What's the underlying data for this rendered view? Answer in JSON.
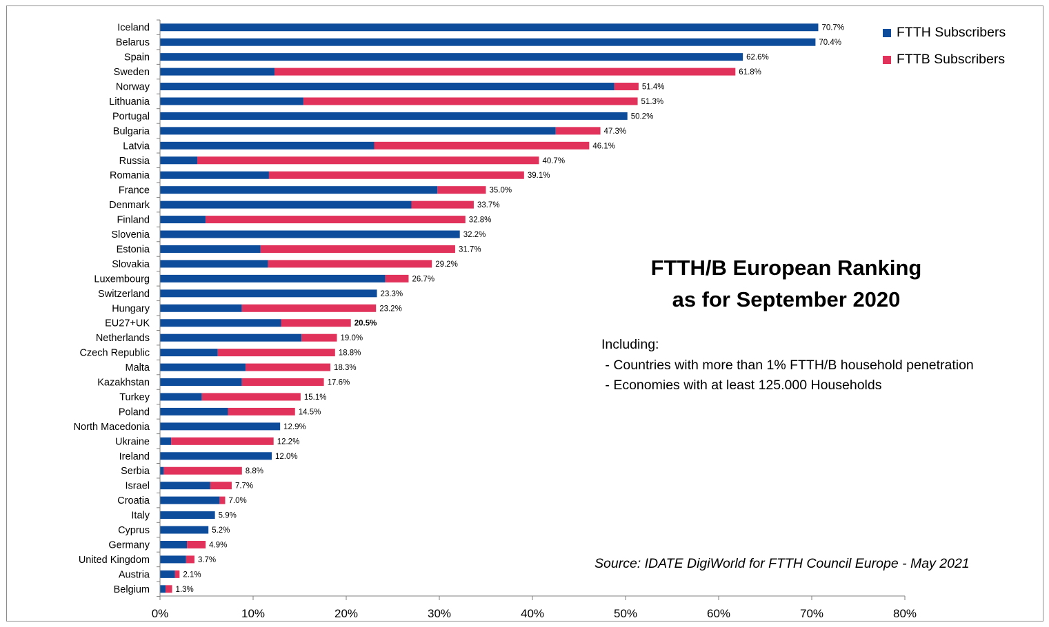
{
  "colors": {
    "ftth": "#0d4c9b",
    "fttb": "#e0325a",
    "axis": "#7f7f7f",
    "frame": "#8c8c8c"
  },
  "legend": {
    "ftth_label": "FTTH Subscribers",
    "fttb_label": "FTTB Subscribers"
  },
  "title": {
    "line1": "FTTH/B European Ranking",
    "line2": "as for September 2020"
  },
  "notes": {
    "heading": "Including:",
    "item1": " - Countries with more than 1% FTTH/B household penetration",
    "item2": " - Economies with at least 125.000 Households"
  },
  "source": "Source: IDATE DigiWorld for FTTH Council Europe - May 2021",
  "chart_data": {
    "type": "bar",
    "orientation": "horizontal",
    "stacked": true,
    "xlim": [
      0,
      80
    ],
    "x_ticks": [
      "0%",
      "10%",
      "20%",
      "30%",
      "40%",
      "50%",
      "60%",
      "70%",
      "80%"
    ],
    "grid": false,
    "legend_position": "top-right",
    "highlight_category": "EU27+UK",
    "categories": [
      "Iceland",
      "Belarus",
      "Spain",
      "Sweden",
      "Norway",
      "Lithuania",
      "Portugal",
      "Bulgaria",
      "Latvia",
      "Russia",
      "Romania",
      "France",
      "Denmark",
      "Finland",
      "Slovenia",
      "Estonia",
      "Slovakia",
      "Luxembourg",
      "Switzerland",
      "Hungary",
      "EU27+UK",
      "Netherlands",
      "Czech Republic",
      "Malta",
      "Kazakhstan",
      "Turkey",
      "Poland",
      "North Macedonia",
      "Ukraine",
      "Ireland",
      "Serbia",
      "Israel",
      "Croatia",
      "Italy",
      "Cyprus",
      "Germany",
      "United Kingdom",
      "Austria",
      "Belgium"
    ],
    "series": [
      {
        "name": "FTTH Subscribers",
        "values": [
          70.7,
          70.4,
          62.6,
          12.3,
          48.8,
          15.4,
          50.2,
          42.5,
          23.0,
          4.0,
          11.7,
          29.8,
          27.0,
          4.9,
          32.2,
          10.8,
          11.6,
          24.2,
          23.3,
          8.8,
          13.0,
          15.2,
          6.2,
          9.2,
          8.8,
          4.5,
          7.3,
          12.9,
          1.2,
          12.0,
          0.4,
          5.4,
          6.4,
          5.9,
          5.2,
          2.9,
          2.8,
          1.6,
          0.6
        ]
      },
      {
        "name": "FTTB Subscribers",
        "values": [
          0,
          0,
          0,
          49.5,
          2.6,
          35.9,
          0,
          4.8,
          23.1,
          36.7,
          27.4,
          5.2,
          6.7,
          27.9,
          0,
          20.9,
          17.6,
          2.5,
          0,
          14.4,
          7.5,
          3.8,
          12.6,
          9.1,
          8.8,
          10.6,
          7.2,
          0,
          11.0,
          0,
          8.4,
          2.3,
          0.6,
          0,
          0,
          2.0,
          0.9,
          0.5,
          0.7
        ]
      }
    ],
    "totals": [
      70.7,
      70.4,
      62.6,
      61.8,
      51.4,
      51.3,
      50.2,
      47.3,
      46.1,
      40.7,
      39.1,
      35.0,
      33.7,
      32.8,
      32.2,
      31.7,
      29.2,
      26.7,
      23.3,
      23.2,
      20.5,
      19.0,
      18.8,
      18.3,
      17.6,
      15.1,
      14.5,
      12.9,
      12.2,
      12.0,
      8.8,
      7.7,
      7.0,
      5.9,
      5.2,
      4.9,
      3.7,
      2.1,
      1.3
    ],
    "data_labels": [
      "70.7%",
      "70.4%",
      "62.6%",
      "61.8%",
      "51.4%",
      "51.3%",
      "50.2%",
      "47.3%",
      "46.1%",
      "40.7%",
      "39.1%",
      "35.0%",
      "33.7%",
      "32.8%",
      "32.2%",
      "31.7%",
      "29.2%",
      "26.7%",
      "23.3%",
      "23.2%",
      "20.5%",
      "19.0%",
      "18.8%",
      "18.3%",
      "17.6%",
      "15.1%",
      "14.5%",
      "12.9%",
      "12.2%",
      "12.0%",
      "8.8%",
      "7.7%",
      "7.0%",
      "5.9%",
      "5.2%",
      "4.9%",
      "3.7%",
      "2.1%",
      "1.3%"
    ]
  }
}
